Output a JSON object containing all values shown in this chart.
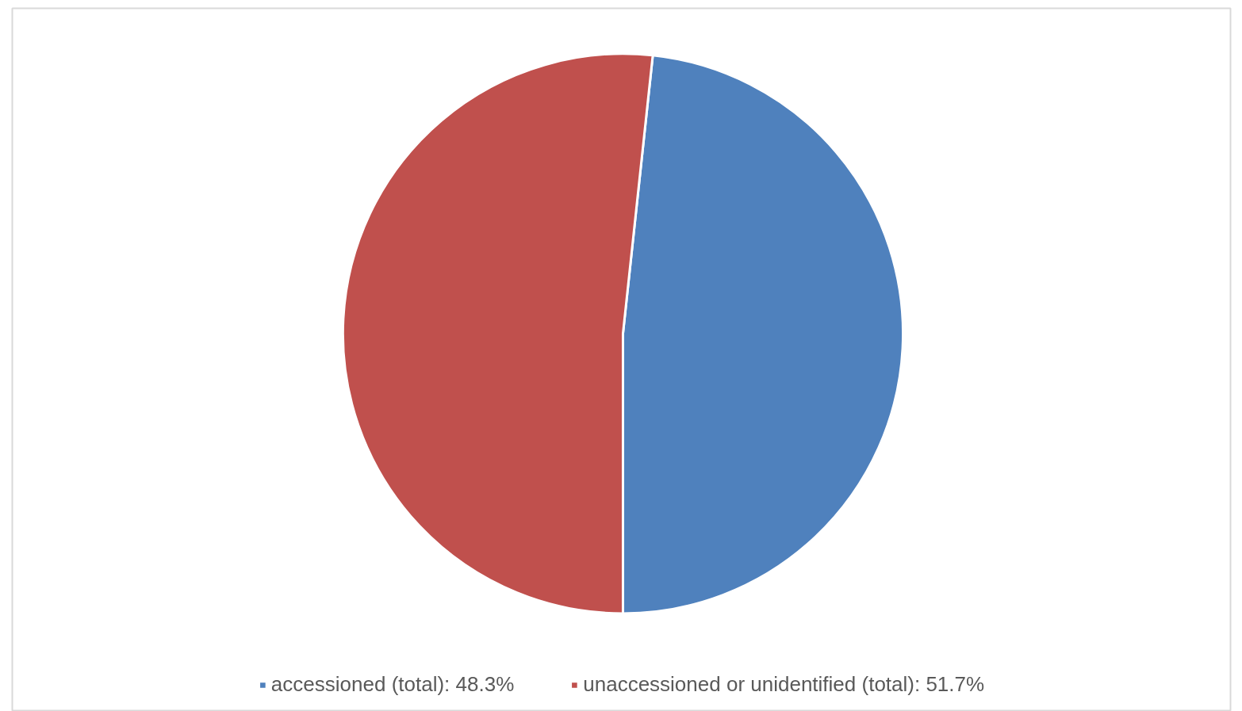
{
  "chart_data": {
    "type": "pie",
    "categories": [
      "accessioned (total): 48.3%",
      "unaccessioned or unidentified (total): 51.7%"
    ],
    "values": [
      48.3,
      51.7
    ],
    "colors": [
      "#4f81bd",
      "#c0504d"
    ],
    "legend": "bottom"
  }
}
